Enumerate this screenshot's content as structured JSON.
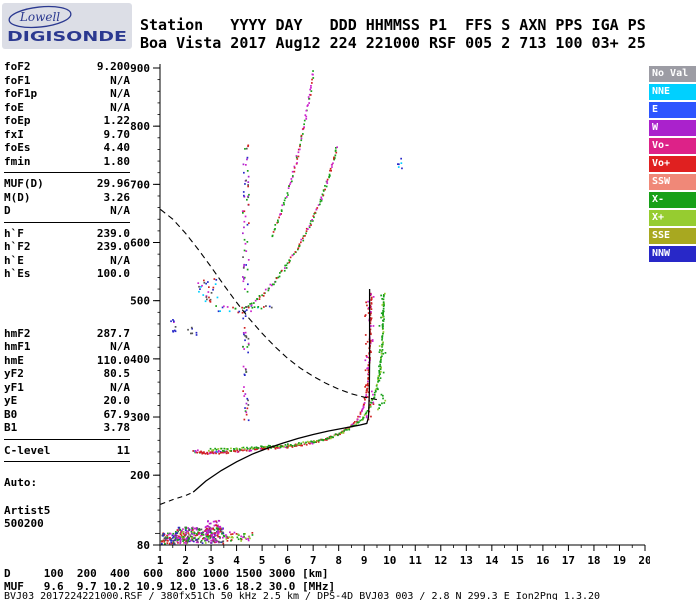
{
  "logo": {
    "line1": "Lowell",
    "line2": "DIGISONDE",
    "color": "#2b3990"
  },
  "header": {
    "line1": "Station   YYYY DAY   DDD HHMMSS P1  FFS S AXN PPS IGA PS",
    "line2": "Boa Vista 2017 Aug12 224 221000 RSF 005 2 713 100 03+ 25"
  },
  "params": {
    "groups": [
      {
        "rows": [
          [
            "foF2",
            "9.200"
          ],
          [
            "foF1",
            "N/A"
          ],
          [
            "foF1p",
            "N/A"
          ],
          [
            "foE",
            "N/A"
          ],
          [
            "foEp",
            "1.22"
          ],
          [
            "fxI",
            "9.70"
          ],
          [
            "foEs",
            "4.40"
          ],
          [
            "fmin",
            "1.80"
          ]
        ],
        "hr": true,
        "gap": 0
      },
      {
        "rows": [
          [
            "MUF(D)",
            "29.96"
          ],
          [
            "M(D)",
            "3.26"
          ],
          [
            "D",
            "N/A"
          ]
        ],
        "hr": true,
        "gap": 0
      },
      {
        "rows": [
          [
            "h`F",
            "239.0"
          ],
          [
            "h`F2",
            "239.0"
          ],
          [
            "h`E",
            "N/A"
          ],
          [
            "h`Es",
            "100.0"
          ]
        ],
        "hr": false,
        "gap": 46
      },
      {
        "rows": [
          [
            "hmF2",
            "287.7"
          ],
          [
            "hmF1",
            "N/A"
          ],
          [
            "hmE",
            "110.0"
          ],
          [
            "yF2",
            "80.5"
          ],
          [
            "yF1",
            "N/A"
          ],
          [
            "yE",
            "20.0"
          ],
          [
            "B0",
            "67.9"
          ],
          [
            "B1",
            "3.78"
          ]
        ],
        "hr": true,
        "gap": 0
      },
      {
        "rows": [
          [
            "C-level",
            "11"
          ]
        ],
        "hr": true,
        "gap": 10
      }
    ],
    "footer": [
      "Auto:",
      "Artist5",
      "500200"
    ]
  },
  "legend": [
    {
      "label": "No Val",
      "color": "#9c9ca4"
    },
    {
      "label": "NNE",
      "color": "#00d0ff"
    },
    {
      "label": "E",
      "color": "#2d55ff"
    },
    {
      "label": "W",
      "color": "#aa22cc"
    },
    {
      "label": "Vo-",
      "color": "#dd2288"
    },
    {
      "label": "Vo+",
      "color": "#e02020"
    },
    {
      "label": "SSW",
      "color": "#f08878"
    },
    {
      "label": "X-",
      "color": "#18a018"
    },
    {
      "label": "X+",
      "color": "#96cc30"
    },
    {
      "label": "SSE",
      "color": "#a8a820"
    },
    {
      "label": "NNW",
      "color": "#2828c8"
    }
  ],
  "bottom": {
    "d_row": {
      "label": "D",
      "values": [
        "100",
        "200",
        "400",
        "600",
        "800",
        "1000",
        "1500",
        "3000"
      ],
      "unit": "[km]"
    },
    "muf_row": {
      "label": "MUF",
      "values": [
        "9.6",
        "9.7",
        "10.2",
        "10.9",
        "12.0",
        "13.6",
        "18.2",
        "30.0"
      ],
      "unit": "[MHz]"
    },
    "footer": "BVJ03_2017224221000.RSF / 380fx51Ch 50 kHz 2.5 km / DPS-4D BVJ03 003 / 2.8 N 299.3 E Ion2Png 1.3.20"
  },
  "chart_data": {
    "type": "scatter",
    "title": "Digisonde ionogram, Boa Vista 2017 Aug12 224 221000",
    "xlabel": "",
    "ylabel": "",
    "xlim": [
      1,
      20
    ],
    "ylim": [
      80,
      900
    ],
    "x_ticks": [
      1,
      2,
      3,
      4,
      5,
      6,
      7,
      8,
      9,
      10,
      11,
      12,
      13,
      14,
      15,
      16,
      17,
      18,
      19,
      20
    ],
    "x_minor_step": 0.5,
    "y_tick_labels": [
      900,
      800,
      700,
      600,
      500,
      400,
      300,
      200,
      80
    ],
    "y_minor_step": 20,
    "grid": false,
    "legend_position": "right",
    "series": [
      {
        "name": "es-layer-main",
        "style": "cluster",
        "x_range": [
          1.55,
          3.45
        ],
        "y_range": [
          84,
          112
        ],
        "n": 300,
        "colors": [
          "#cc22cc",
          "#cc22cc",
          "#18a018",
          "#18a018",
          "#d02020",
          "#2828c8",
          "#96cc30",
          "#aa22cc",
          "#555555"
        ]
      },
      {
        "name": "es-layer-left",
        "style": "cluster",
        "x_range": [
          1.03,
          1.6
        ],
        "y_range": [
          83,
          102
        ],
        "n": 60,
        "colors": [
          "#cc22cc",
          "#18a018",
          "#d02020",
          "#2828c8",
          "#555555"
        ]
      },
      {
        "name": "es-layer-right",
        "style": "cluster",
        "x_range": [
          3.45,
          4.6
        ],
        "y_range": [
          88,
          104
        ],
        "n": 45,
        "colors": [
          "#cc22cc",
          "#18a018",
          "#d02020",
          "#96cc30"
        ]
      },
      {
        "name": "es-blob",
        "style": "cluster",
        "x_range": [
          2.75,
          3.35
        ],
        "y_range": [
          95,
          125
        ],
        "n": 50,
        "colors": [
          "#cc22cc",
          "#cc22cc",
          "#aa22cc",
          "#d02020"
        ]
      },
      {
        "name": "f-trace-start-mixed",
        "style": "trace",
        "spacing": 2.0,
        "jitter_x": 2,
        "jitter_y": 4,
        "points": [
          [
            2.28,
            243
          ],
          [
            3.0,
            241
          ],
          [
            3.6,
            241
          ]
        ],
        "colors": [
          "#cc22cc",
          "#2828c8",
          "#00d0ff",
          "#18a018",
          "#d02020"
        ]
      },
      {
        "name": "f-trace-o-mode",
        "style": "trace",
        "spacing": 1.5,
        "jitter_y": 2.6,
        "points": [
          [
            2.28,
            242
          ],
          [
            2.6,
            240
          ],
          [
            3.0,
            240
          ],
          [
            3.5,
            241
          ],
          [
            4.0,
            243
          ],
          [
            4.5,
            245
          ],
          [
            5.0,
            247
          ],
          [
            5.5,
            249
          ],
          [
            6.0,
            251
          ],
          [
            6.5,
            254
          ],
          [
            7.0,
            258
          ],
          [
            7.5,
            264
          ],
          [
            8.0,
            272
          ],
          [
            8.4,
            283
          ],
          [
            8.7,
            297
          ],
          [
            8.95,
            320
          ],
          [
            9.1,
            355
          ],
          [
            9.17,
            400
          ],
          [
            9.21,
            450
          ],
          [
            9.24,
            515
          ]
        ],
        "colors": [
          "#d02020",
          "#d02020",
          "#d02020",
          "#d02020",
          "#cc22cc"
        ]
      },
      {
        "name": "f-trace-x-mode",
        "style": "trace",
        "spacing": 1.5,
        "jitter_y": 2.6,
        "points": [
          [
            2.9,
            245
          ],
          [
            3.5,
            245
          ],
          [
            4.0,
            246
          ],
          [
            4.6,
            248
          ],
          [
            5.2,
            250
          ],
          [
            5.8,
            252
          ],
          [
            6.4,
            255
          ],
          [
            7.0,
            259
          ],
          [
            7.6,
            266
          ],
          [
            8.1,
            274
          ],
          [
            8.5,
            284
          ],
          [
            8.9,
            298
          ],
          [
            9.2,
            320
          ],
          [
            9.45,
            350
          ],
          [
            9.6,
            385
          ],
          [
            9.68,
            430
          ],
          [
            9.73,
            480
          ],
          [
            9.75,
            515
          ]
        ],
        "colors": [
          "#18a018",
          "#18a018",
          "#18a018",
          "#96cc30"
        ]
      },
      {
        "name": "o-asymptote-spread",
        "style": "cluster",
        "x_range": [
          9.0,
          9.35
        ],
        "y_range": [
          290,
          515
        ],
        "n": 45,
        "colors": [
          "#d02020",
          "#d02020",
          "#cc22cc"
        ]
      },
      {
        "name": "x-asymptote-spread",
        "style": "cluster",
        "x_range": [
          9.5,
          9.8
        ],
        "y_range": [
          310,
          515
        ],
        "n": 35,
        "colors": [
          "#18a018",
          "#18a018",
          "#96cc30"
        ]
      },
      {
        "name": "second-hop-flat",
        "style": "trace",
        "spacing": 2.4,
        "jitter_x": 3,
        "jitter_y": 7,
        "points": [
          [
            3.15,
            488
          ],
          [
            3.9,
            485
          ],
          [
            4.6,
            487
          ],
          [
            5.3,
            491
          ]
        ],
        "colors": [
          "#d02020",
          "#18a018",
          "#cc22cc",
          "#2828c8",
          "#555555",
          "#00d0ff"
        ]
      },
      {
        "name": "second-hop-scatter",
        "style": "cluster",
        "x_range": [
          2.45,
          3.25
        ],
        "y_range": [
          498,
          540
        ],
        "n": 28,
        "colors": [
          "#2828c8",
          "#cc22cc",
          "#555555",
          "#00d0ff",
          "#d02020"
        ]
      },
      {
        "name": "second-hop-rise",
        "style": "trace",
        "spacing": 1.7,
        "jitter_x": 2,
        "jitter_y": 3,
        "points": [
          [
            4.35,
            488
          ],
          [
            4.9,
            508
          ],
          [
            5.4,
            531
          ],
          [
            5.9,
            560
          ],
          [
            6.4,
            594
          ],
          [
            6.9,
            636
          ],
          [
            7.3,
            678
          ],
          [
            7.6,
            717
          ],
          [
            7.82,
            750
          ],
          [
            7.9,
            766
          ]
        ],
        "colors": [
          "#d02020",
          "#18a018",
          "#18a018",
          "#d02020",
          "#cc22cc"
        ]
      },
      {
        "name": "third-hop-rise",
        "style": "trace",
        "spacing": 2.3,
        "jitter_x": 2,
        "jitter_y": 3,
        "points": [
          [
            5.35,
            612
          ],
          [
            5.7,
            652
          ],
          [
            6.05,
            700
          ],
          [
            6.35,
            748
          ],
          [
            6.6,
            798
          ],
          [
            6.82,
            850
          ],
          [
            6.98,
            896
          ]
        ],
        "colors": [
          "#d02020",
          "#18a018",
          "#cc22cc"
        ]
      },
      {
        "name": "spread-f-column",
        "style": "cluster",
        "x_range": [
          4.2,
          4.45
        ],
        "y_range": [
          295,
          770
        ],
        "n": 100,
        "colors": [
          "#cc22cc",
          "#2828c8",
          "#555555",
          "#d02020",
          "#18a018",
          "#aa22cc"
        ]
      },
      {
        "name": "stray-echoes-left-1",
        "style": "cluster",
        "x_range": [
          1.22,
          1.62
        ],
        "y_range": [
          448,
          470
        ],
        "n": 9,
        "colors": [
          "#555555",
          "#2828c8",
          "#cc22cc"
        ]
      },
      {
        "name": "stray-echoes-left-2",
        "style": "cluster",
        "x_range": [
          2.05,
          2.4
        ],
        "y_range": [
          442,
          462
        ],
        "n": 7,
        "colors": [
          "#555555",
          "#2828c8"
        ]
      },
      {
        "name": "stray-echoes-top-right",
        "style": "cluster",
        "x_range": [
          10.2,
          10.55
        ],
        "y_range": [
          728,
          750
        ],
        "n": 6,
        "colors": [
          "#00d0ff",
          "#2828c8"
        ]
      },
      {
        "name": "profile-valley-dashed",
        "style": "dashed",
        "color": "#000000",
        "dash": "5 4",
        "points": [
          [
            1.02,
            150
          ],
          [
            1.5,
            158
          ],
          [
            2.0,
            165
          ],
          [
            2.3,
            171
          ]
        ]
      },
      {
        "name": "true-height-profile",
        "style": "line",
        "color": "#000000",
        "width": 1.3,
        "points": [
          [
            2.3,
            171
          ],
          [
            2.8,
            190
          ],
          [
            3.4,
            208
          ],
          [
            4.0,
            223
          ],
          [
            4.6,
            236
          ],
          [
            5.2,
            246
          ],
          [
            5.8,
            255
          ],
          [
            6.4,
            263
          ],
          [
            7.0,
            270
          ],
          [
            7.6,
            276
          ],
          [
            8.2,
            281
          ],
          [
            8.8,
            286
          ],
          [
            9.1,
            289
          ],
          [
            9.17,
            300
          ],
          [
            9.2,
            340
          ],
          [
            9.21,
            400
          ],
          [
            9.21,
            460
          ],
          [
            9.21,
            520
          ]
        ]
      },
      {
        "name": "transmission-curve-dashed",
        "style": "dashed",
        "color": "#000000",
        "dash": "6 4",
        "points": [
          [
            1.02,
            657
          ],
          [
            1.5,
            640
          ],
          [
            2.0,
            616
          ],
          [
            2.5,
            588
          ],
          [
            3.0,
            558
          ],
          [
            3.5,
            527
          ],
          [
            4.0,
            497
          ],
          [
            4.5,
            469
          ],
          [
            5.0,
            444
          ],
          [
            5.5,
            421
          ],
          [
            6.0,
            401
          ],
          [
            6.5,
            384
          ],
          [
            7.0,
            370
          ],
          [
            7.5,
            358
          ],
          [
            8.0,
            348
          ],
          [
            8.5,
            340
          ],
          [
            9.0,
            334
          ],
          [
            9.5,
            330
          ]
        ]
      }
    ]
  }
}
